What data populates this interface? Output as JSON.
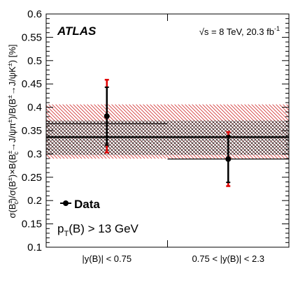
{
  "chart_data": {
    "type": "scatter",
    "experiment": "ATLAS",
    "energy_label": "√s = 8 TeV, 20.3 fb",
    "energy_sup": "-1",
    "ylabel": "σ(B_c^±)/σ(B^±)×B(B_c^±→J/ψπ^±)/B(B^±→J/ψK^±) [%]",
    "ylim": [
      0.1,
      0.6
    ],
    "yticks": [
      "0.1",
      "0.15",
      "0.2",
      "0.25",
      "0.3",
      "0.35",
      "0.4",
      "0.45",
      "0.5",
      "0.55",
      "0.6"
    ],
    "categories": [
      "|y(B)| < 0.75",
      "0.75 < |y(B)| < 2.3"
    ],
    "legend": "Data",
    "selection_label": "p_T(B) > 13 GeV",
    "series": [
      {
        "name": "Data",
        "values": [
          0.381,
          0.289
        ],
        "stat_err": [
          0.062,
          0.05
        ],
        "total_err": [
          0.078,
          0.058
        ]
      }
    ],
    "bin_averages": [
      0.365,
      0.289
    ],
    "average": {
      "value": 0.336,
      "band_inner": [
        0.298,
        0.372
      ],
      "band_outer": [
        0.29,
        0.406
      ]
    },
    "colors": {
      "data": "#000000",
      "total_error": "#e00000",
      "band_outer": "#d03030",
      "band_inner": "#000000"
    }
  }
}
